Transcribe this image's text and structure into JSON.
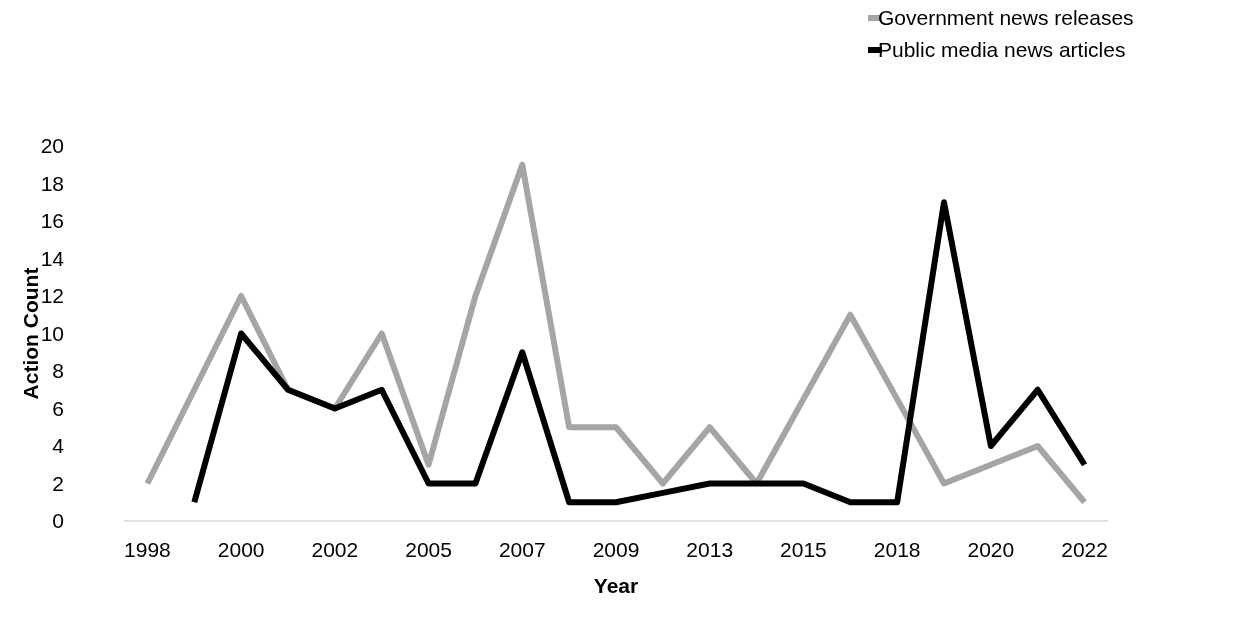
{
  "chart_data": {
    "type": "line",
    "xlabel": "Year",
    "ylabel": "Action Count",
    "categories": [
      "1998",
      null,
      "2000",
      null,
      "2002",
      null,
      "2005",
      null,
      "2007",
      null,
      "2009",
      null,
      "2013",
      null,
      "2015",
      null,
      "2018",
      null,
      "2020",
      null,
      "2022"
    ],
    "series": [
      {
        "name": "Government news releases",
        "color": "#a5a5a5",
        "values": [
          2,
          7,
          12,
          7,
          6,
          10,
          3,
          12,
          19,
          5,
          5,
          2,
          5,
          2,
          6.5,
          11,
          6.5,
          2,
          3,
          4,
          1
        ]
      },
      {
        "name": "Public media news articles",
        "color": "#000000",
        "values": [
          null,
          1,
          10,
          7,
          6,
          7,
          2,
          2,
          9,
          1,
          1,
          1.5,
          2,
          2,
          2,
          1,
          1,
          17,
          4,
          7,
          3
        ]
      }
    ],
    "ylim": [
      0,
      20
    ],
    "yticks": [
      0,
      2,
      4,
      6,
      8,
      10,
      12,
      14,
      16,
      18,
      20
    ],
    "grid": false,
    "legend": "top right",
    "marker": "none",
    "line_style": "solid"
  }
}
